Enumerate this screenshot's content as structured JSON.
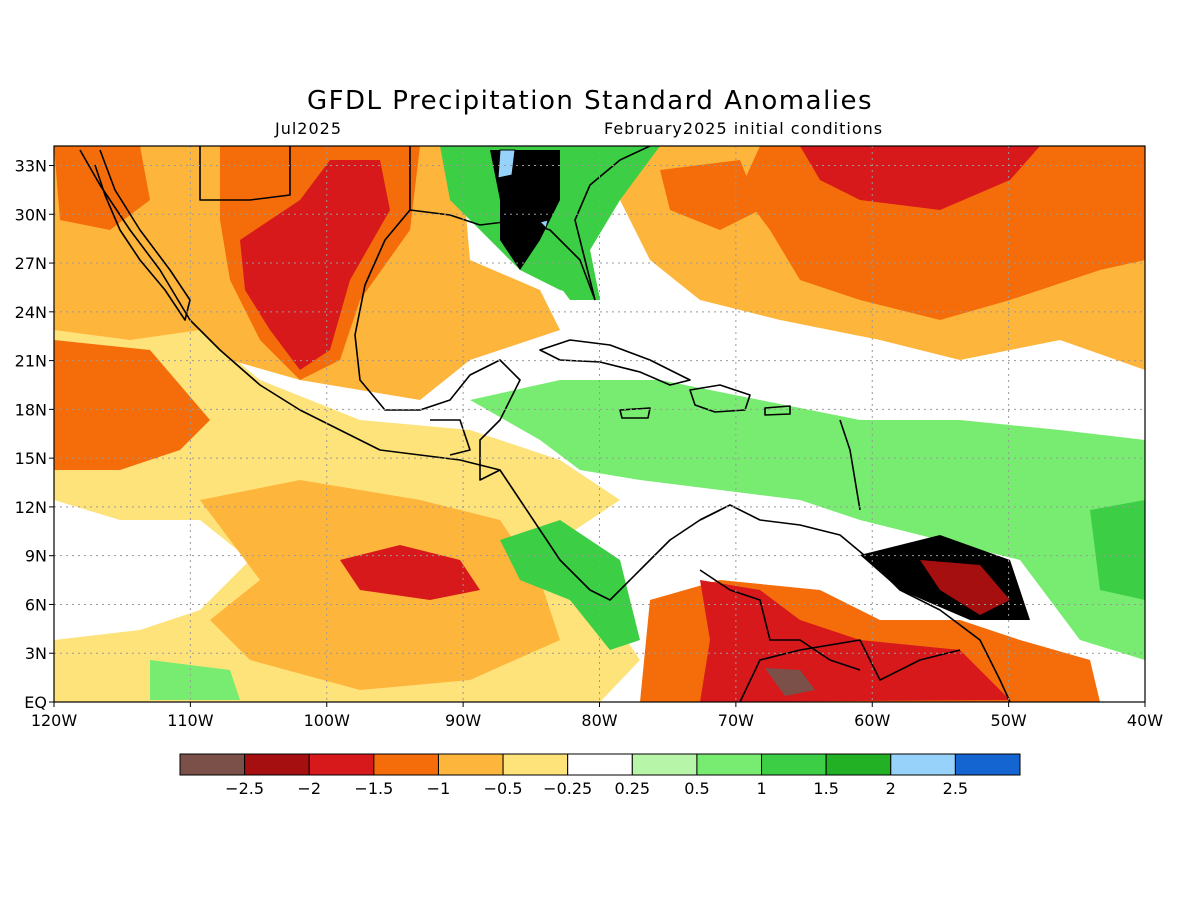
{
  "title": "GFDL Precipitation Standard Anomalies",
  "valid_month": "Jul2025",
  "init_text": "February2025 initial conditions",
  "lat_labels": [
    "33N",
    "30N",
    "27N",
    "24N",
    "21N",
    "18N",
    "15N",
    "12N",
    "9N",
    "6N",
    "3N",
    "EQ"
  ],
  "lon_labels": [
    "120W",
    "110W",
    "100W",
    "90W",
    "80W",
    "70W",
    "60W",
    "50W",
    "40W"
  ],
  "colorbar": {
    "tick_labels": [
      "−2.5",
      "−2",
      "−1.5",
      "−1",
      "−0.5",
      "−0.25",
      "0.25",
      "0.5",
      "1",
      "1.5",
      "2",
      "2.5"
    ],
    "colors": [
      "#7a5048",
      "#a50f0f",
      "#d7191c",
      "#f46d0a",
      "#fdb53c",
      "#fee27a",
      "#ffffff",
      "#b7f5a8",
      "#78ec70",
      "#3ccf45",
      "#22b025",
      "#96d2fa",
      "#1464d2"
    ]
  },
  "regions": [
    {
      "name": "nw-mexico-orange",
      "color": "#fdb53c"
    },
    {
      "name": "mexico-core-orange",
      "color": "#f46d0a"
    },
    {
      "name": "mexico-red",
      "color": "#d7191c"
    },
    {
      "name": "atlantic-orange",
      "color": "#fdb53c"
    },
    {
      "name": "atlantic-deep-orange",
      "color": "#f46d0a"
    },
    {
      "name": "atlantic-red",
      "color": "#d7191c"
    },
    {
      "name": "caribbean-green",
      "color": "#78ec70"
    },
    {
      "name": "se-us-green",
      "color": "#3ccf45"
    },
    {
      "name": "pacific-yellow",
      "color": "#fee27a"
    },
    {
      "name": "pacific-orange",
      "color": "#fdb53c"
    },
    {
      "name": "south-america-red",
      "color": "#d7191c"
    },
    {
      "name": "guianas-dark-red",
      "color": "#a50f0f"
    },
    {
      "name": "brown-core",
      "color": "#7a5048"
    }
  ]
}
